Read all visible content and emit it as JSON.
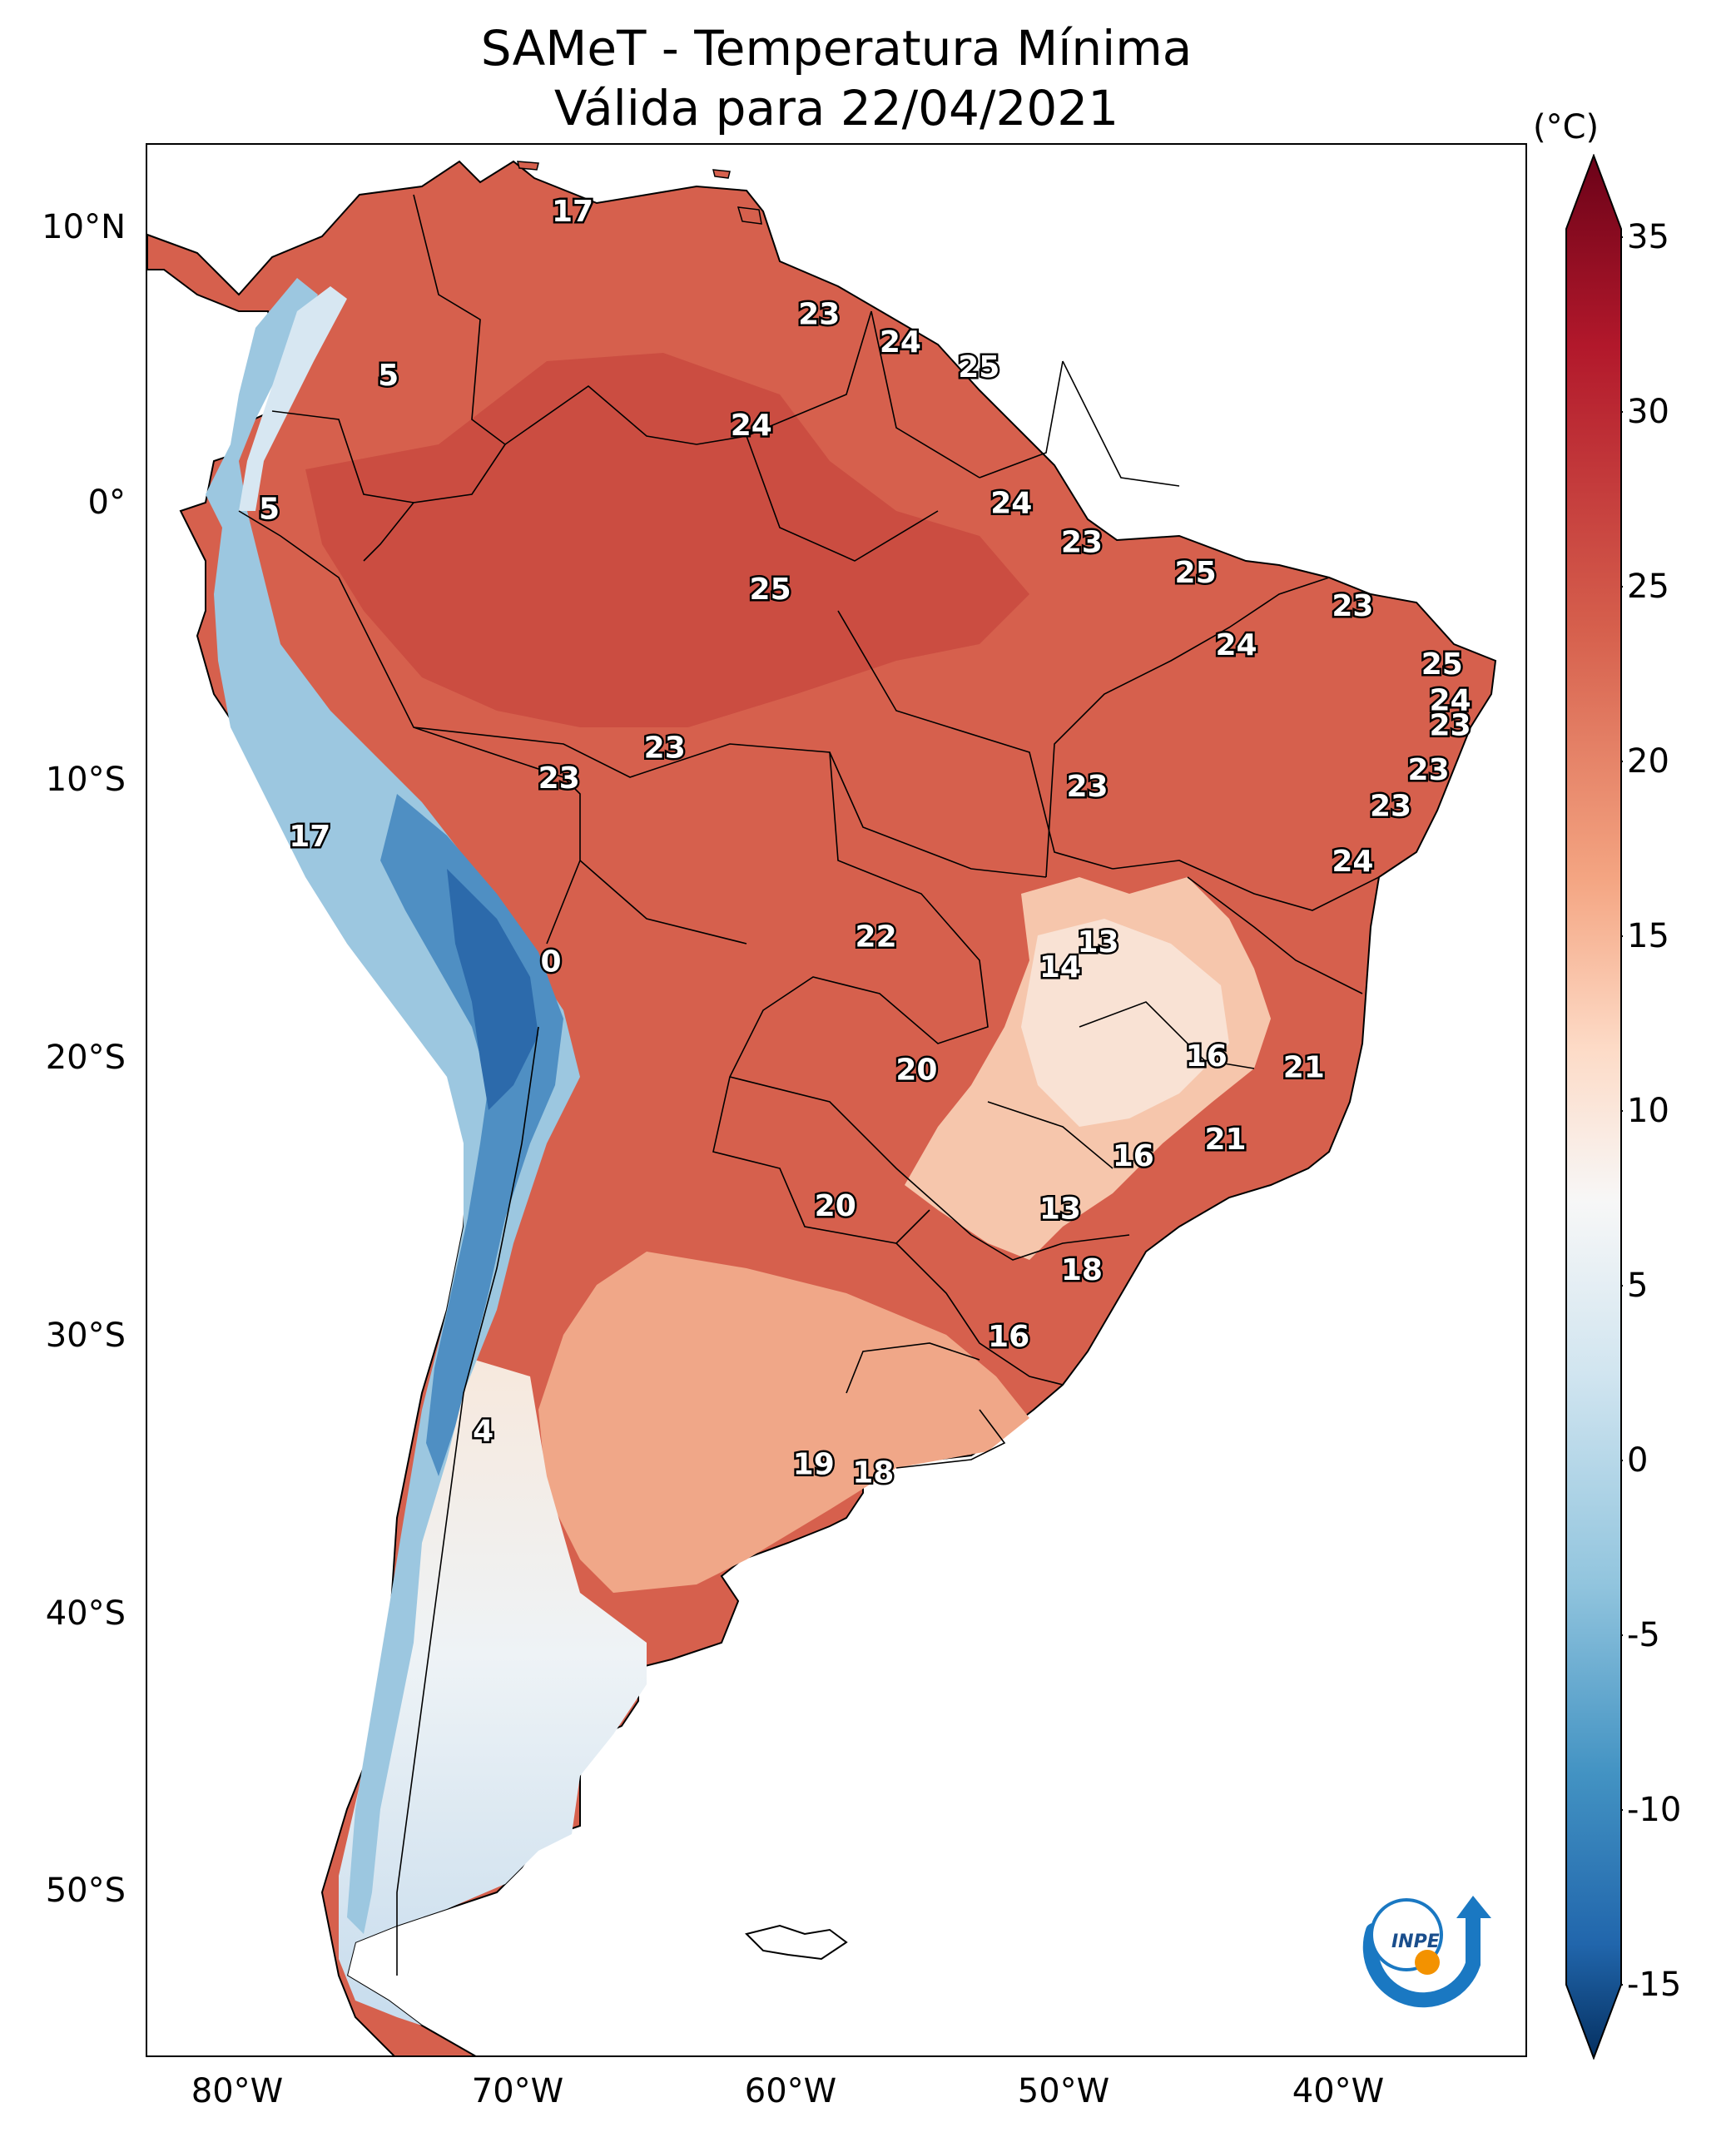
{
  "title": {
    "line1": "SAMeT - Temperatura Mínima",
    "line2": "Válida para 22/04/2021"
  },
  "lat_ticks": [
    "10°N",
    "0°",
    "10°S",
    "20°S",
    "30°S",
    "40°S",
    "50°S"
  ],
  "lon_ticks": [
    "80°W",
    "70°W",
    "60°W",
    "50°W",
    "40°W"
  ],
  "colorbar": {
    "unit": "(°C)",
    "min": -15,
    "max": 35,
    "ticks": [
      "35",
      "30",
      "25",
      "20",
      "15",
      "10",
      "5",
      "0",
      "-5",
      "-10",
      "-15"
    ],
    "cold_color": "#0a3d78",
    "mid_color": "#f7f7f7",
    "warm_color": "#6b0218"
  },
  "map_values": [
    {
      "value": "17",
      "lon": -67.3,
      "lat": 10.5
    },
    {
      "value": "5",
      "lon": -74.1,
      "lat": 4.6
    },
    {
      "value": "5",
      "lon": -78.5,
      "lat": -0.2
    },
    {
      "value": "23",
      "lon": -58.2,
      "lat": 6.8
    },
    {
      "value": "24",
      "lon": -55.2,
      "lat": 5.8
    },
    {
      "value": "25",
      "lon": -52.3,
      "lat": 4.9
    },
    {
      "value": "24",
      "lon": -60.7,
      "lat": 2.8
    },
    {
      "value": "24",
      "lon": -51.1,
      "lat": 0.0
    },
    {
      "value": "23",
      "lon": -48.5,
      "lat": -1.4
    },
    {
      "value": "25",
      "lon": -60.0,
      "lat": -3.1
    },
    {
      "value": "25",
      "lon": -44.3,
      "lat": -2.5
    },
    {
      "value": "23",
      "lon": -38.5,
      "lat": -3.7
    },
    {
      "value": "24",
      "lon": -42.8,
      "lat": -5.1
    },
    {
      "value": "25",
      "lon": -35.2,
      "lat": -5.8
    },
    {
      "value": "24",
      "lon": -34.9,
      "lat": -7.1
    },
    {
      "value": "23",
      "lon": -34.9,
      "lat": -8.0
    },
    {
      "value": "23",
      "lon": -63.9,
      "lat": -8.8
    },
    {
      "value": "23",
      "lon": -67.8,
      "lat": -9.9
    },
    {
      "value": "23",
      "lon": -48.3,
      "lat": -10.2
    },
    {
      "value": "23",
      "lon": -35.7,
      "lat": -9.6
    },
    {
      "value": "23",
      "lon": -37.1,
      "lat": -10.9
    },
    {
      "value": "17",
      "lon": -77.0,
      "lat": -12.0
    },
    {
      "value": "24",
      "lon": -38.5,
      "lat": -12.9
    },
    {
      "value": "13",
      "lon": -47.9,
      "lat": -15.8
    },
    {
      "value": "22",
      "lon": -56.1,
      "lat": -15.6
    },
    {
      "value": "14",
      "lon": -49.3,
      "lat": -16.7
    },
    {
      "value": "0",
      "lon": -68.1,
      "lat": -16.5
    },
    {
      "value": "16",
      "lon": -43.9,
      "lat": -19.9
    },
    {
      "value": "20",
      "lon": -54.6,
      "lat": -20.4
    },
    {
      "value": "21",
      "lon": -40.3,
      "lat": -20.3
    },
    {
      "value": "21",
      "lon": -43.2,
      "lat": -22.9
    },
    {
      "value": "16",
      "lon": -46.6,
      "lat": -23.5
    },
    {
      "value": "20",
      "lon": -57.6,
      "lat": -25.3
    },
    {
      "value": "13",
      "lon": -49.3,
      "lat": -25.4
    },
    {
      "value": "18",
      "lon": -48.5,
      "lat": -27.6
    },
    {
      "value": "16",
      "lon": -51.2,
      "lat": -30.0
    },
    {
      "value": "4",
      "lon": -70.6,
      "lat": -33.4
    },
    {
      "value": "19",
      "lon": -58.4,
      "lat": -34.6
    },
    {
      "value": "18",
      "lon": -56.2,
      "lat": -34.9
    }
  ],
  "logo": {
    "text": "INPE",
    "blue": "#1a78c2",
    "orange": "#f39200"
  }
}
